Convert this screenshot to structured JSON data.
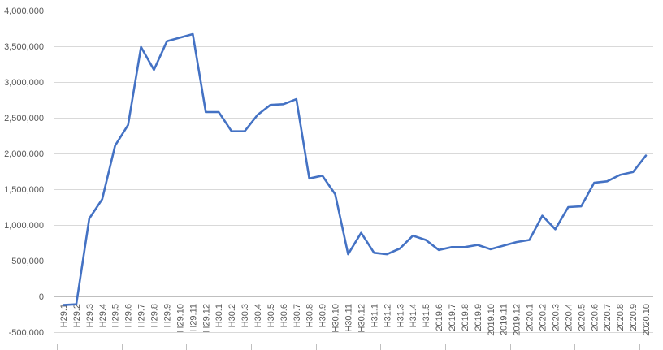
{
  "chart_data": {
    "type": "line",
    "title": "",
    "xlabel": "",
    "ylabel": "",
    "ylim": [
      -500000,
      4000000
    ],
    "y_ticks": [
      "-500,000",
      "0",
      "500,000",
      "1,000,000",
      "1,500,000",
      "2,000,000",
      "2,500,000",
      "3,000,000",
      "3,500,000",
      "4,000,000"
    ],
    "y_tick_values": [
      -500000,
      0,
      500000,
      1000000,
      1500000,
      2000000,
      2500000,
      3000000,
      3500000,
      4000000
    ],
    "grid": true,
    "legend": "none",
    "line_color": "#4472c4",
    "categories": [
      "H29.1",
      "H29.2",
      "H29.3",
      "H29.4",
      "H29.5",
      "H29.6",
      "H29.7",
      "H29.8",
      "H29.9",
      "H29.10",
      "H29.11",
      "H29.12",
      "H30.1",
      "H30.2",
      "H30.3",
      "H30.4",
      "H30.5",
      "H30.6",
      "H30.7",
      "H30.8",
      "H30.9",
      "H30.10",
      "H30.11",
      "H30.12",
      "H31.1",
      "H31.2",
      "H31.3",
      "H31.4",
      "H31.5",
      "2019.6",
      "2019.7",
      "2019.8",
      "2019.9",
      "2019.10",
      "2019.11",
      "2019.12",
      "2020.1",
      "2020.2",
      "2020.3",
      "2020.4",
      "2020.5",
      "2020.6",
      "2020.7",
      "2020.8",
      "2020.9",
      "2020.10"
    ],
    "series": [
      {
        "values": [
          -120000,
          -110000,
          1090000,
          1360000,
          2110000,
          2400000,
          3490000,
          3170000,
          3570000,
          3620000,
          3670000,
          2580000,
          2580000,
          2310000,
          2310000,
          2540000,
          2680000,
          2690000,
          2760000,
          1650000,
          1690000,
          1430000,
          590000,
          890000,
          610000,
          590000,
          670000,
          850000,
          790000,
          650000,
          690000,
          690000,
          720000,
          660000,
          710000,
          760000,
          790000,
          1130000,
          940000,
          1250000,
          1260000,
          1590000,
          1610000,
          1700000,
          1740000,
          1970000
        ]
      }
    ]
  }
}
